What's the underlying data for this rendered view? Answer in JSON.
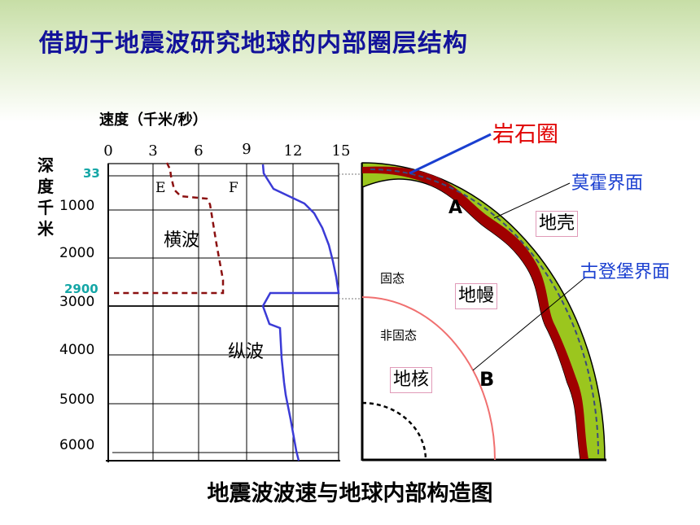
{
  "title": "借助于地震波研究地球的内部圈层结构",
  "caption": "地震波波速与地球内部构造图",
  "chart": {
    "speed_axis_label": "速度（千米/秒）",
    "depth_axis_label": [
      "深",
      "度",
      "千",
      "米"
    ],
    "x_ticks": [
      "0",
      "3",
      "6",
      "9",
      "12",
      "15"
    ],
    "y_ticks": [
      "1000",
      "2000",
      "3000",
      "4000",
      "5000",
      "6000"
    ],
    "marker_33": "33",
    "marker_2900": "2900",
    "shear_wave_label": "横波",
    "primary_wave_label": "纵波",
    "label_E": "E",
    "label_F": "F"
  },
  "structure": {
    "lithosphere": "岩石圈",
    "moho": "莫霍界面",
    "gutenberg": "古登堡界面",
    "crust": "地壳",
    "mantle": "地幔",
    "core": "地核",
    "solid": "固态",
    "non_solid": "非固态",
    "label_A": "A",
    "label_B": "B"
  },
  "colors": {
    "title": "#12129a",
    "primary_wave": "#3b3bd6",
    "shear_wave": "#8b1010",
    "crust_fill": "#9bc61e",
    "mantle_band": "#a00000",
    "gutenberg_line": "#f07070",
    "callout_red": "#e00000",
    "callout_blue": "#1a3fd0",
    "accent_ticks": "#14a6a6"
  }
}
